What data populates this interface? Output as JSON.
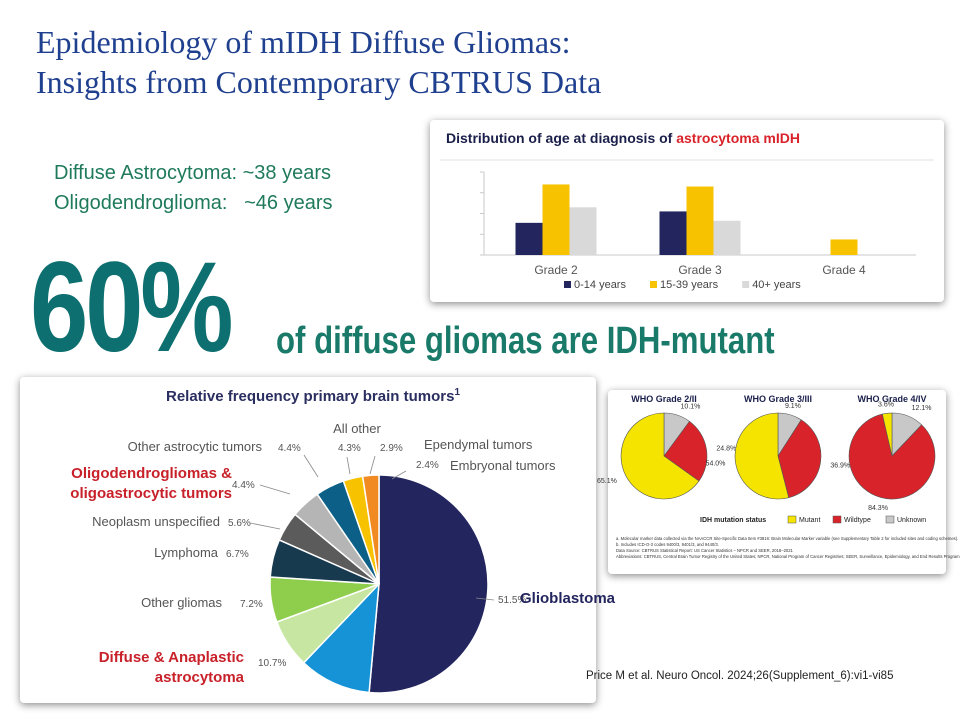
{
  "slide": {
    "title_line1": "Epidemiology of mIDH Diffuse Gliomas:",
    "title_line2": "Insights from Contemporary CBTRUS Data",
    "age_astro": "Diffuse Astrocytoma: ~38 years",
    "age_oligo": "Oligodendroglioma:   ~46 years",
    "big_percent": "60%",
    "big_text": "of diffuse gliomas are IDH-mutant",
    "citation": "Price M et al. Neuro Oncol. 2024;26(Supplement_6):vi1-vi85"
  },
  "colors": {
    "title": "#1f3f8f",
    "age_text": "#1f7a5c",
    "big_teal": "#0d6f6f",
    "navy": "#23255e",
    "yellow": "#f7c200",
    "gray": "#d9d9d9",
    "red": "#d9232a"
  },
  "chart_data": [
    {
      "type": "bar",
      "title_prefix": "Distribution of age at diagnosis of ",
      "title_highlight": "astrocytoma mIDH",
      "categories": [
        "Grade 2",
        "Grade 3",
        "Grade 4"
      ],
      "series": [
        {
          "name": "0-14 years",
          "color": "#23255e",
          "values": [
            31,
            42,
            0
          ]
        },
        {
          "name": "15-39 years",
          "color": "#f7c200",
          "values": [
            68,
            66,
            15
          ]
        },
        {
          "name": "40+ years",
          "color": "#d9d9d9",
          "values": [
            46,
            33,
            0
          ]
        }
      ],
      "ylim": [
        0,
        80
      ],
      "legend": "bottom"
    },
    {
      "type": "pie",
      "title": "Relative frequency primary brain tumors",
      "title_sup": "1",
      "slices": [
        {
          "label": "Glioblastoma",
          "value": 51.5,
          "value_label": "51.5%",
          "color": "#23255e",
          "emphasis": "navy"
        },
        {
          "label": "Diffuse & Anaplastic astrocytoma",
          "value": 10.7,
          "value_label": "10.7%",
          "color": "#1593d6",
          "emphasis": "red"
        },
        {
          "label": "Other gliomas",
          "value": 7.2,
          "value_label": "7.2%",
          "color": "#c6e6a2",
          "emphasis": "none"
        },
        {
          "label": "Lymphoma",
          "value": 6.7,
          "value_label": "6.7%",
          "color": "#8fce4d",
          "emphasis": "none"
        },
        {
          "label": "Neoplasm unspecified",
          "value": 5.6,
          "value_label": "5.6%",
          "color": "#173a4f",
          "emphasis": "none"
        },
        {
          "label": "Oligodendrogliomas & oligoastrocytic tumors",
          "value": 4.4,
          "value_label": "4.4%",
          "color": "#5b5b5b",
          "emphasis": "red"
        },
        {
          "label": "Other astrocytic tumors",
          "value": 4.4,
          "value_label": "4.4%",
          "color": "#b5b5b5",
          "emphasis": "none"
        },
        {
          "label": "All other",
          "value": 4.3,
          "value_label": "4.3%",
          "color": "#0c5f86",
          "emphasis": "none"
        },
        {
          "label": "Ependymal tumors",
          "value": 2.9,
          "value_label": "2.9%",
          "color": "#f7c200",
          "emphasis": "none"
        },
        {
          "label": "Embryonal tumors",
          "value": 2.4,
          "value_label": "2.4%",
          "color": "#f28a22",
          "emphasis": "none"
        }
      ]
    },
    {
      "type": "pie",
      "legend_title": "IDH mutation status",
      "legend": [
        {
          "name": "Mutant",
          "color": "#f4e400"
        },
        {
          "name": "Wildtype",
          "color": "#d9232a"
        },
        {
          "name": "Unknown",
          "color": "#c8c8c8"
        }
      ],
      "pies": [
        {
          "title": "WHO Grade 2/II",
          "slices": [
            {
              "name": "Mutant",
              "value": 65.1,
              "label": "65.1%"
            },
            {
              "name": "Wildtype",
              "value": 24.8,
              "label": "24.8%"
            },
            {
              "name": "Unknown",
              "value": 10.1,
              "label": "10.1%"
            }
          ]
        },
        {
          "title": "WHO Grade 3/III",
          "slices": [
            {
              "name": "Mutant",
              "value": 54.0,
              "label": "54.0%"
            },
            {
              "name": "Wildtype",
              "value": 36.9,
              "label": "36.9%"
            },
            {
              "name": "Unknown",
              "value": 9.1,
              "label": "9.1%"
            }
          ]
        },
        {
          "title": "WHO Grade 4/IV",
          "slices": [
            {
              "name": "Mutant",
              "value": 3.6,
              "label": "3.6%"
            },
            {
              "name": "Wildtype",
              "value": 84.3,
              "label": "84.3%"
            },
            {
              "name": "Unknown",
              "value": 12.1,
              "label": "12.1%"
            }
          ]
        }
      ],
      "footnotes": [
        "a. Molecular marker data collected via the NAACCR Site-Specific Data Item #3816: Brain Molecular Marker variable (see Supplementary Table 2 for included sites and coding schemes).",
        "b. Includes ICD-O-3 codes 9400/3, 9401/3, and 9440/3.",
        "Data Source: CBTRUS Statistical Report: US Cancer Statistics – NPCR and SEER, 2018–2021",
        "Abbreviations: CBTRUS, Central Brain Tumor Registry of the United States; NPCR, National Program of Cancer Registries; SEER, Surveillance, Epidemiology, and End Results Program."
      ]
    }
  ]
}
